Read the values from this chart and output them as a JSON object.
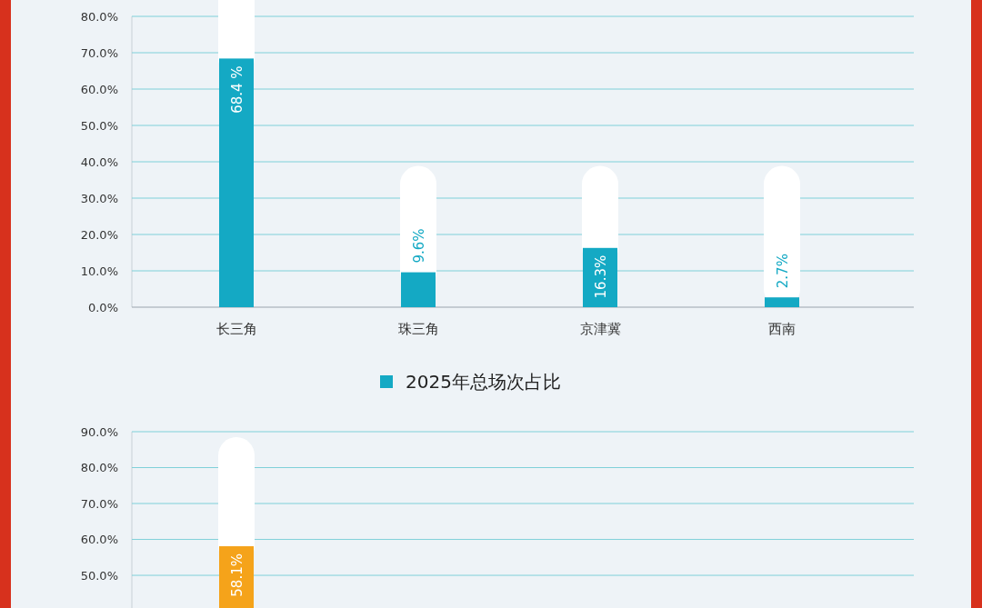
{
  "chart_data": [
    {
      "type": "bar",
      "categories": [
        "长三角",
        "珠三角",
        "京津冀",
        "西南"
      ],
      "series": [
        {
          "name": "2025年总场次占比",
          "color": "#14a9c4",
          "values": [
            68.4,
            9.6,
            16.3,
            2.7
          ],
          "value_labels": [
            "68.4 %",
            "9.6%",
            "16.3%",
            "2.7%"
          ]
        }
      ],
      "ylim": [
        0,
        80
      ],
      "yticks": [
        {
          "value": 0,
          "label": "0.0%"
        },
        {
          "value": 10,
          "label": "10.0%"
        },
        {
          "value": 20,
          "label": "20.0%"
        },
        {
          "value": 30,
          "label": "30.0%"
        },
        {
          "value": 40,
          "label": "40.0%"
        },
        {
          "value": 50,
          "label": "50.0%"
        },
        {
          "value": 60,
          "label": "60.0%"
        },
        {
          "value": 70,
          "label": "70.0%"
        },
        {
          "value": 80,
          "label": "80.0%"
        }
      ],
      "grid": "y",
      "legend": "bottom"
    },
    {
      "type": "bar",
      "categories": [
        null,
        null,
        null,
        null
      ],
      "series": [
        {
          "color": "#f5a31a",
          "values": [
            58.1,
            null,
            null,
            null
          ],
          "value_labels": [
            "58.1%",
            null,
            null,
            null
          ]
        }
      ],
      "ylim": [
        40.9,
        90
      ],
      "yticks": [
        {
          "value": 50,
          "label": "50.0%"
        },
        {
          "value": 60,
          "label": "60.0%"
        },
        {
          "value": 70,
          "label": "70.0%"
        },
        {
          "value": 80,
          "label": "80.0%"
        },
        {
          "value": 90,
          "label": "90.0%"
        }
      ],
      "grid": "y"
    }
  ]
}
